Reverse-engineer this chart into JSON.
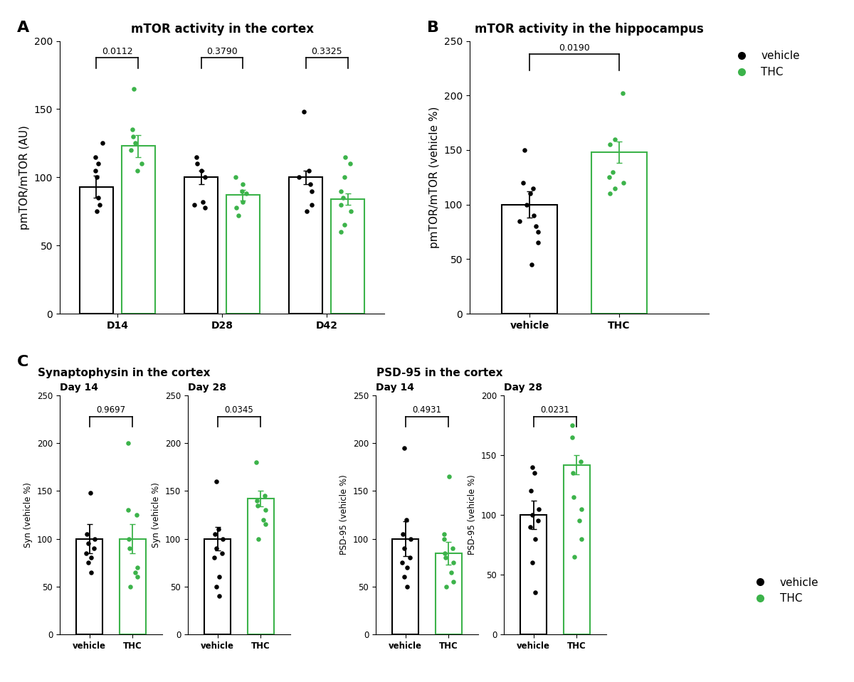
{
  "panel_A": {
    "title": "mTOR activity in the cortex",
    "ylabel": "pmTOR/mTOR (AU)",
    "groups": [
      "D14",
      "D28",
      "D42"
    ],
    "bar_means": [
      93,
      123,
      100,
      87,
      100,
      84
    ],
    "bar_errors": [
      8,
      8,
      5,
      4,
      5,
      4
    ],
    "pvalues": [
      "0.0112",
      "0.3790",
      "0.3325"
    ],
    "ylim": [
      0,
      200
    ],
    "yticks": [
      0,
      50,
      100,
      150,
      200
    ],
    "vehicle_dots": [
      [
        75,
        80,
        85,
        100,
        105,
        110,
        115,
        125
      ],
      [
        78,
        80,
        82,
        100,
        105,
        110,
        115
      ],
      [
        75,
        80,
        90,
        95,
        100,
        105,
        148
      ]
    ],
    "thc_dots": [
      [
        105,
        110,
        120,
        125,
        130,
        135,
        165
      ],
      [
        72,
        78,
        82,
        88,
        90,
        95,
        100
      ],
      [
        60,
        65,
        75,
        80,
        85,
        90,
        100,
        110,
        115
      ]
    ]
  },
  "panel_B": {
    "title": "mTOR activity in the hippocampus",
    "ylabel": "pmTOR/mTOR (vehicle %)",
    "groups": [
      "vehicle",
      "THC"
    ],
    "bar_means": [
      100,
      148
    ],
    "bar_errors": [
      12,
      10
    ],
    "pvalue": "0.0190",
    "ylim": [
      0,
      250
    ],
    "yticks": [
      0,
      50,
      100,
      150,
      200,
      250
    ],
    "vehicle_dots": [
      45,
      65,
      75,
      80,
      85,
      90,
      100,
      110,
      115,
      120,
      150
    ],
    "thc_dots": [
      110,
      115,
      120,
      125,
      130,
      155,
      160,
      202
    ]
  },
  "panel_C1": {
    "title": "Synaptophysin in the cortex",
    "subtitle_d14": "Day 14",
    "subtitle_d28": "Day 28",
    "ylabel": "Syn (vehicle %)",
    "pvalue_d14": "0.9697",
    "pvalue_d28": "0.0345",
    "bar_means_d14": [
      100,
      100
    ],
    "bar_errors_d14": [
      15,
      15
    ],
    "bar_means_d28": [
      100,
      142
    ],
    "bar_errors_d28": [
      12,
      8
    ],
    "ylim": [
      0,
      250
    ],
    "yticks": [
      0,
      50,
      100,
      150,
      200,
      250
    ],
    "vehicle_dots_d14": [
      65,
      75,
      80,
      85,
      90,
      95,
      100,
      105,
      148
    ],
    "thc_dots_d14": [
      50,
      60,
      65,
      70,
      90,
      100,
      125,
      130,
      200
    ],
    "vehicle_dots_d28": [
      40,
      50,
      60,
      80,
      85,
      90,
      100,
      105,
      110,
      160
    ],
    "thc_dots_d28": [
      100,
      115,
      120,
      130,
      135,
      140,
      145,
      180
    ]
  },
  "panel_C2": {
    "title": "PSD-95 in the cortex",
    "subtitle_d14": "Day 14",
    "subtitle_d28": "Day 28",
    "ylabel_d14": "PSD-95 (vehicle %)",
    "ylabel_d28": "PSD-95 (vehicle %)",
    "pvalue_d14": "0.4931",
    "pvalue_d28": "0.0231",
    "bar_means_d14": [
      100,
      85
    ],
    "bar_errors_d14": [
      18,
      12
    ],
    "bar_means_d28": [
      100,
      142
    ],
    "bar_errors_d28": [
      12,
      8
    ],
    "ylim_d14": [
      0,
      250
    ],
    "yticks_d14": [
      0,
      50,
      100,
      150,
      200,
      250
    ],
    "ylim_d28": [
      0,
      200
    ],
    "yticks_d28": [
      0,
      50,
      100,
      150,
      200
    ],
    "vehicle_dots_d14": [
      50,
      60,
      70,
      75,
      80,
      90,
      100,
      105,
      120,
      195
    ],
    "thc_dots_d14": [
      50,
      55,
      65,
      75,
      80,
      85,
      90,
      100,
      105,
      165
    ],
    "vehicle_dots_d28": [
      35,
      60,
      80,
      90,
      95,
      100,
      105,
      120,
      135,
      140
    ],
    "thc_dots_d28": [
      65,
      80,
      95,
      105,
      115,
      135,
      145,
      165,
      175
    ]
  },
  "colors": {
    "vehicle": "#000000",
    "thc": "#3cb34a"
  },
  "dot_size": 22,
  "bar_width": 0.32
}
